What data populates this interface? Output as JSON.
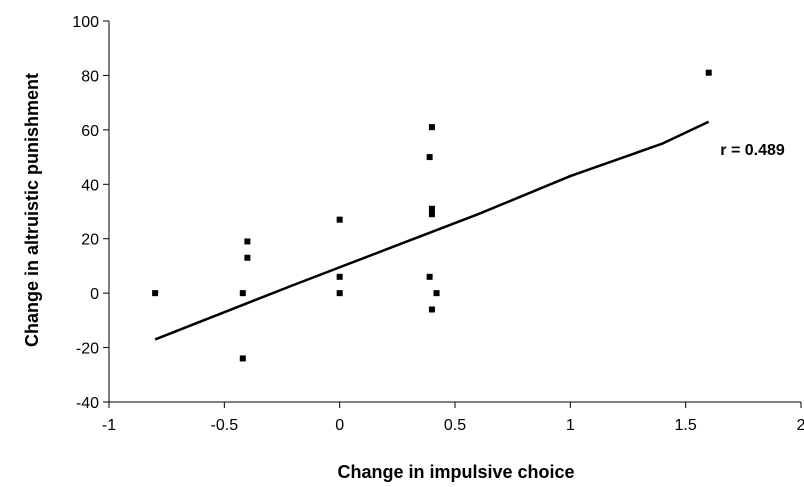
{
  "chart_data": {
    "type": "scatter",
    "title": "",
    "xlabel": "Change in impulsive choice",
    "ylabel": "Change in altruistic punishment",
    "xlim": [
      -1,
      2
    ],
    "ylim": [
      -40,
      100
    ],
    "xticks": [
      -1,
      -0.5,
      0,
      0.5,
      1,
      1.5,
      2
    ],
    "xtick_labels": [
      "-1",
      "-0.5",
      "0",
      "0.5",
      "1",
      "1.5",
      "2"
    ],
    "yticks": [
      -40,
      -20,
      0,
      20,
      40,
      60,
      80,
      100
    ],
    "ytick_labels": [
      "-40",
      "-20",
      "0",
      "20",
      "40",
      "60",
      "80",
      "100"
    ],
    "grid": false,
    "series": [
      {
        "type": "scatter",
        "color": "#000000",
        "marker": "square",
        "points": [
          {
            "x": -0.8,
            "y": 0
          },
          {
            "x": -0.42,
            "y": 0
          },
          {
            "x": -0.42,
            "y": -24
          },
          {
            "x": -0.4,
            "y": 19
          },
          {
            "x": -0.4,
            "y": 13
          },
          {
            "x": 0,
            "y": 27
          },
          {
            "x": 0,
            "y": 6
          },
          {
            "x": 0,
            "y": 0
          },
          {
            "x": 0.39,
            "y": 50
          },
          {
            "x": 0.4,
            "y": 61
          },
          {
            "x": 0.4,
            "y": 31
          },
          {
            "x": 0.4,
            "y": 29
          },
          {
            "x": 0.39,
            "y": 6
          },
          {
            "x": 0.4,
            "y": -6
          },
          {
            "x": 0.42,
            "y": 0
          },
          {
            "x": 1.6,
            "y": 81
          }
        ]
      },
      {
        "type": "line",
        "color": "#000000",
        "points": [
          {
            "x": -0.8,
            "y": -17
          },
          {
            "x": -0.2,
            "y": 3
          },
          {
            "x": 0.2,
            "y": 16
          },
          {
            "x": 0.6,
            "y": 29
          },
          {
            "x": 1.0,
            "y": 43
          },
          {
            "x": 1.4,
            "y": 55
          },
          {
            "x": 1.6,
            "y": 63
          }
        ]
      }
    ],
    "annotations": [
      {
        "text": "r = 0.489",
        "x": 1.65,
        "y": 53
      }
    ]
  }
}
